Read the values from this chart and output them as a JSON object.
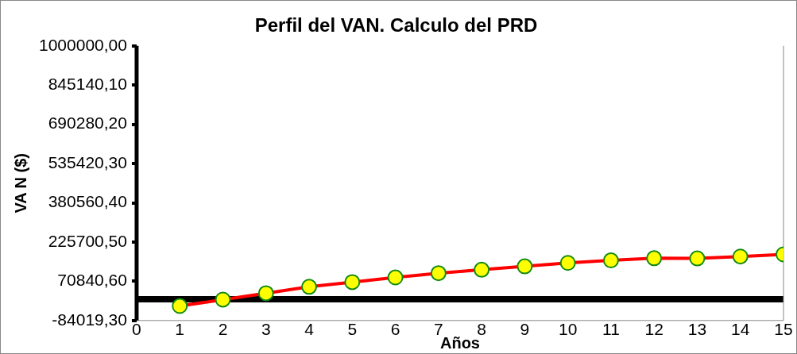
{
  "chart_data": {
    "type": "line",
    "title": "Perfil del VAN. Calculo del PRD",
    "xlabel": "Años",
    "ylabel": "VA N ($)",
    "x": [
      1,
      2,
      3,
      4,
      5,
      6,
      7,
      8,
      9,
      10,
      11,
      12,
      13,
      14,
      15
    ],
    "series": [
      {
        "color": "#ff0000",
        "values": [
          -26800,
          -1500,
          23700,
          49000,
          67500,
          86000,
          102800,
          116300,
          129700,
          143200,
          153300,
          161700,
          161000,
          168500,
          176900
        ]
      }
    ],
    "xlim": [
      0,
      15
    ],
    "xticks": [
      0,
      1,
      2,
      3,
      4,
      5,
      6,
      7,
      8,
      9,
      10,
      11,
      12,
      13,
      14,
      15
    ],
    "ylim": [
      -84019.3,
      1000000
    ],
    "yticks": [
      {
        "value": -84019.3,
        "label": "-84019,30"
      },
      {
        "value": 70840.6,
        "label": "70840,60"
      },
      {
        "value": 225700.5,
        "label": "225700,50"
      },
      {
        "value": 380560.4,
        "label": "380560,40"
      },
      {
        "value": 535420.3,
        "label": "535420,30"
      },
      {
        "value": 690280.2,
        "label": "690280,20"
      },
      {
        "value": 845140.1,
        "label": "845140,10"
      },
      {
        "value": 1000000,
        "label": "1000000,00"
      }
    ],
    "ref_lines": [
      {
        "axis": "y",
        "value": 0,
        "color": "#000000"
      }
    ],
    "marker": "circle",
    "line_style": "solid",
    "grid": false,
    "legend": false
  }
}
